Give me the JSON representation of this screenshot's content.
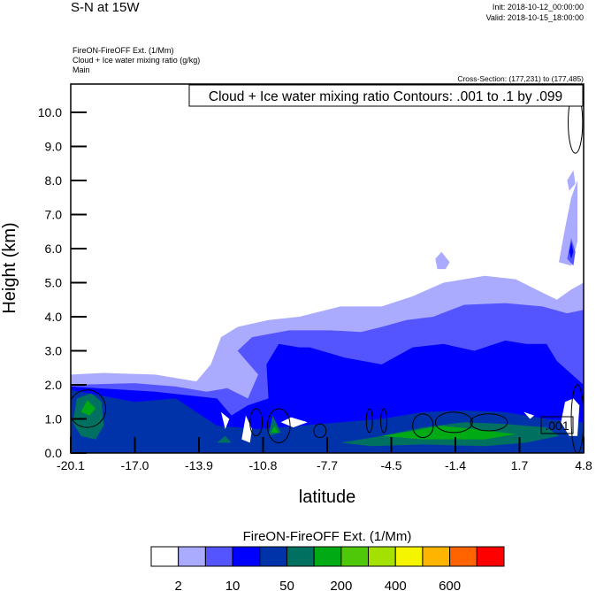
{
  "header": {
    "title": "S-N at 15W",
    "init": "Init: 2018-10-12_00:00:00",
    "valid": "Valid: 2018-10-15_18:00:00",
    "field_lines": [
      "FireON-FireOFF Ext.   (1/Mm)",
      "Cloud + Ice water mixing ratio   (g/kg)",
      "Main"
    ],
    "cross_section": "Cross-Section: (177,231) to (177,485)"
  },
  "chart_data": {
    "type": "heatmap",
    "subtype": "filled-contour cross-section",
    "xlabel": "latitude",
    "ylabel": "Height (km)",
    "xlim": [
      -20.1,
      4.8
    ],
    "ylim": [
      0,
      10.83
    ],
    "x_ticks": [
      "-20.1",
      "-17.0",
      "-13.9",
      "-10.8",
      "-7.7",
      "-4.5",
      "-1.4",
      "1.7",
      "4.8"
    ],
    "y_ticks": [
      "0.0",
      "1.0",
      "2.0",
      "3.0",
      "4.0",
      "5.0",
      "6.0",
      "7.0",
      "8.0",
      "9.0",
      "10.0"
    ],
    "contour_info": "Cloud + Ice water mixing ratio Contours: .001 to .1 by .099",
    "contour_label": ".001",
    "colorbar": {
      "title": "FireON-FireOFF Ext.  (1/Mm)",
      "colors": [
        "#ffffff",
        "#aaaaff",
        "#5555ff",
        "#0000ff",
        "#0033aa",
        "#007060",
        "#00aa14",
        "#50c80a",
        "#a5e100",
        "#f5f500",
        "#ffb400",
        "#ff6400",
        "#ff0000"
      ],
      "labels": [
        {
          "boundary": 1,
          "text": "2"
        },
        {
          "boundary": 3,
          "text": "10"
        },
        {
          "boundary": 5,
          "text": "50"
        },
        {
          "boundary": 7,
          "text": "200"
        },
        {
          "boundary": 9,
          "text": "400"
        },
        {
          "boundary": 11,
          "text": "600"
        }
      ]
    },
    "regions": [
      {
        "level": 1,
        "points": [
          [
            -20.1,
            0
          ],
          [
            -20.1,
            2.3
          ],
          [
            -18.5,
            2.35
          ],
          [
            -16,
            2.3
          ],
          [
            -14,
            2.1
          ],
          [
            -13.3,
            2.6
          ],
          [
            -12.8,
            3.4
          ],
          [
            -12,
            3.7
          ],
          [
            -10.5,
            3.9
          ],
          [
            -9,
            4.0
          ],
          [
            -7,
            4.3
          ],
          [
            -5,
            4.3
          ],
          [
            -3.5,
            4.6
          ],
          [
            -2,
            5.0
          ],
          [
            0,
            5.2
          ],
          [
            1.5,
            5.1
          ],
          [
            2.5,
            4.8
          ],
          [
            3.5,
            4.5
          ],
          [
            4.2,
            4.8
          ],
          [
            4.8,
            5.0
          ],
          [
            4.8,
            0
          ]
        ]
      },
      {
        "level": 1,
        "points": [
          [
            -2.4,
            5.7
          ],
          [
            -2.1,
            5.9
          ],
          [
            -1.7,
            5.6
          ],
          [
            -1.9,
            5.4
          ],
          [
            -2.3,
            5.4
          ]
        ]
      },
      {
        "level": 1,
        "points": [
          [
            3.6,
            5.6
          ],
          [
            3.9,
            6.6
          ],
          [
            4.2,
            7.5
          ],
          [
            4.5,
            8.0
          ],
          [
            4.5,
            6.2
          ],
          [
            4.2,
            5.5
          ]
        ]
      },
      {
        "level": 1,
        "points": [
          [
            4.0,
            8.0
          ],
          [
            4.3,
            8.3
          ],
          [
            4.4,
            7.9
          ],
          [
            4.1,
            7.7
          ]
        ]
      },
      {
        "level": 2,
        "points": [
          [
            -20.1,
            0
          ],
          [
            -20.1,
            2.0
          ],
          [
            -17,
            2.05
          ],
          [
            -15,
            1.95
          ],
          [
            -13.5,
            1.8
          ],
          [
            -12.5,
            1.9
          ],
          [
            -11.5,
            1.6
          ],
          [
            -11,
            2.3
          ],
          [
            -12,
            3.0
          ],
          [
            -11.3,
            3.4
          ],
          [
            -9.5,
            3.6
          ],
          [
            -7.5,
            3.6
          ],
          [
            -6,
            3.55
          ],
          [
            -5,
            3.7
          ],
          [
            -3.8,
            3.9
          ],
          [
            -2.5,
            4.0
          ],
          [
            -1,
            4.35
          ],
          [
            1,
            4.4
          ],
          [
            2.8,
            4.3
          ],
          [
            4,
            4.1
          ],
          [
            4.8,
            4.2
          ],
          [
            4.8,
            0
          ]
        ]
      },
      {
        "level": 2,
        "points": [
          [
            4.0,
            5.7
          ],
          [
            4.2,
            6.3
          ],
          [
            4.4,
            5.9
          ],
          [
            4.3,
            5.5
          ]
        ]
      },
      {
        "level": 3,
        "points": [
          [
            -20.1,
            0
          ],
          [
            -20.1,
            1.95
          ],
          [
            -16,
            1.8
          ],
          [
            -13,
            1.6
          ],
          [
            -12.3,
            1.1
          ],
          [
            -11.5,
            1.4
          ],
          [
            -10.5,
            1.6
          ],
          [
            -10.6,
            2.6
          ],
          [
            -10,
            3.2
          ],
          [
            -9,
            3.1
          ],
          [
            -8.5,
            3.1
          ],
          [
            -6.8,
            2.8
          ],
          [
            -5,
            2.6
          ],
          [
            -3.5,
            3.1
          ],
          [
            -2,
            3.2
          ],
          [
            -0.5,
            3.0
          ],
          [
            1,
            3.3
          ],
          [
            2,
            3.2
          ],
          [
            3,
            3.2
          ],
          [
            3.5,
            2.7
          ],
          [
            4.8,
            2.0
          ],
          [
            4.8,
            0
          ]
        ]
      },
      {
        "level": 3,
        "points": [
          [
            4.1,
            5.9
          ],
          [
            4.2,
            6.2
          ],
          [
            4.3,
            5.9
          ],
          [
            4.2,
            5.7
          ]
        ]
      },
      {
        "level": 4,
        "points": [
          [
            -20.1,
            0
          ],
          [
            -20.1,
            1.85
          ],
          [
            -17,
            1.5
          ],
          [
            -15,
            1.6
          ],
          [
            -14,
            1.2
          ],
          [
            -13,
            0.8
          ],
          [
            -11,
            0.7
          ],
          [
            -9,
            0.8
          ],
          [
            -7,
            0.9
          ],
          [
            -5,
            1.0
          ],
          [
            -3,
            1.2
          ],
          [
            -1,
            1.25
          ],
          [
            1,
            1.2
          ],
          [
            3,
            1.0
          ],
          [
            4.8,
            0.9
          ],
          [
            4.8,
            0
          ]
        ]
      },
      {
        "level": 5,
        "points": [
          [
            -20.0,
            0.9
          ],
          [
            -19.8,
            1.6
          ],
          [
            -19.1,
            1.75
          ],
          [
            -18.6,
            1.5
          ],
          [
            -18.5,
            0.8
          ],
          [
            -18.9,
            0.4
          ],
          [
            -19.6,
            0.5
          ]
        ]
      },
      {
        "level": 5,
        "points": [
          [
            -7.0,
            0.3
          ],
          [
            -5,
            0.5
          ],
          [
            -3,
            0.75
          ],
          [
            -1,
            0.9
          ],
          [
            1,
            0.85
          ],
          [
            3,
            0.75
          ],
          [
            3.6,
            0.5
          ],
          [
            2,
            0.3
          ],
          [
            0,
            0.2
          ],
          [
            -3,
            0.25
          ],
          [
            -5.5,
            0.2
          ]
        ]
      },
      {
        "level": 5,
        "points": [
          [
            -10.5,
            0.5
          ],
          [
            -10.3,
            1.1
          ],
          [
            -9.9,
            0.6
          ]
        ]
      },
      {
        "level": 5,
        "points": [
          [
            -13.0,
            0.3
          ],
          [
            -12.6,
            0.5
          ],
          [
            -12.3,
            0.3
          ]
        ]
      },
      {
        "level": 6,
        "points": [
          [
            -19.6,
            1.2
          ],
          [
            -19.3,
            1.55
          ],
          [
            -18.9,
            1.3
          ],
          [
            -19.2,
            1.1
          ]
        ]
      },
      {
        "level": 6,
        "points": [
          [
            -5,
            0.5
          ],
          [
            -3.5,
            0.65
          ],
          [
            -2.2,
            0.8
          ],
          [
            -0.5,
            0.7
          ],
          [
            1.5,
            0.55
          ],
          [
            0,
            0.4
          ],
          [
            -3,
            0.4
          ]
        ]
      },
      {
        "level": 6,
        "points": [
          [
            -10.4,
            0.6
          ],
          [
            -10.2,
            0.8
          ],
          [
            -10.0,
            0.6
          ]
        ]
      },
      {
        "level": 0,
        "points": [
          [
            -11.8,
            0.4
          ],
          [
            -11.6,
            1.1
          ],
          [
            -11.3,
            0.7
          ],
          [
            -11.4,
            0.3
          ]
        ]
      },
      {
        "level": 0,
        "points": [
          [
            -9.9,
            0.9
          ],
          [
            -9.4,
            1.05
          ],
          [
            -8.6,
            0.9
          ],
          [
            -9.3,
            0.75
          ]
        ]
      },
      {
        "level": 0,
        "points": [
          [
            -12.8,
            1.2
          ],
          [
            -12.6,
            0.7
          ],
          [
            -12.4,
            1.0
          ]
        ]
      },
      {
        "level": 0,
        "points": [
          [
            3.7,
            0.9
          ],
          [
            3.9,
            1.5
          ],
          [
            4.3,
            1.6
          ],
          [
            4.6,
            1.4
          ],
          [
            4.5,
            0.5
          ],
          [
            4.1,
            0.5
          ]
        ]
      },
      {
        "level": 0,
        "points": [
          [
            1.9,
            1.2
          ],
          [
            2.2,
            1.0
          ],
          [
            2.4,
            1.1
          ]
        ]
      }
    ],
    "contour_lines": [
      {
        "lat": -19.3,
        "km": 1.3,
        "dlat": 0.9,
        "dkm": 0.55
      },
      {
        "lat": -10.0,
        "km": 0.8,
        "dlat": 0.55,
        "dkm": 0.5
      },
      {
        "lat": -11.1,
        "km": 0.9,
        "dlat": 0.3,
        "dkm": 0.4
      },
      {
        "lat": -8.0,
        "km": 0.65,
        "dlat": 0.3,
        "dkm": 0.2
      },
      {
        "lat": -5.6,
        "km": 0.95,
        "dlat": 0.15,
        "dkm": 0.35
      },
      {
        "lat": -4.9,
        "km": 0.95,
        "dlat": 0.15,
        "dkm": 0.35
      },
      {
        "lat": -3.0,
        "km": 0.8,
        "dlat": 0.5,
        "dkm": 0.35
      },
      {
        "lat": -1.5,
        "km": 0.9,
        "dlat": 0.9,
        "dkm": 0.3
      },
      {
        "lat": 0.2,
        "km": 0.9,
        "dlat": 0.9,
        "dkm": 0.25
      },
      {
        "lat": 4.5,
        "km": 1.0,
        "dlat": 0.3,
        "dkm": 1.0
      },
      {
        "lat": 4.4,
        "km": 9.7,
        "dlat": 0.35,
        "dkm": 0.9
      }
    ]
  }
}
